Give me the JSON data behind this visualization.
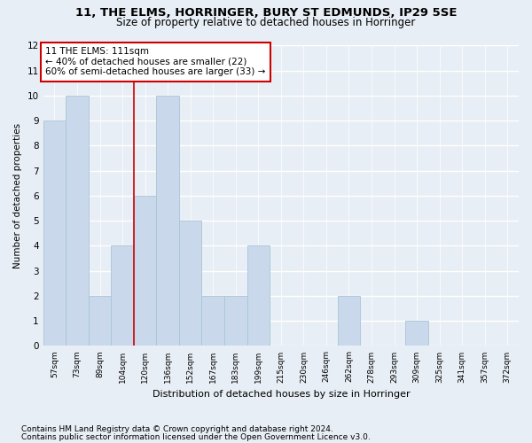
{
  "title1": "11, THE ELMS, HORRINGER, BURY ST EDMUNDS, IP29 5SE",
  "title2": "Size of property relative to detached houses in Horringer",
  "xlabel": "Distribution of detached houses by size in Horringer",
  "ylabel": "Number of detached properties",
  "categories": [
    "57sqm",
    "73sqm",
    "89sqm",
    "104sqm",
    "120sqm",
    "136sqm",
    "152sqm",
    "167sqm",
    "183sqm",
    "199sqm",
    "215sqm",
    "230sqm",
    "246sqm",
    "262sqm",
    "278sqm",
    "293sqm",
    "309sqm",
    "325sqm",
    "341sqm",
    "357sqm",
    "372sqm"
  ],
  "values": [
    9,
    10,
    2,
    4,
    6,
    10,
    5,
    2,
    2,
    4,
    0,
    0,
    0,
    2,
    0,
    0,
    1,
    0,
    0,
    0,
    0
  ],
  "bar_color": "#c9d9eb",
  "bar_edgecolor": "#a8c4d8",
  "bar_linewidth": 0.6,
  "red_line_x": 3.5,
  "annotation_text": "11 THE ELMS: 111sqm\n← 40% of detached houses are smaller (22)\n60% of semi-detached houses are larger (33) →",
  "annotation_box_color": "#ffffff",
  "annotation_box_edgecolor": "#cc0000",
  "ylim": [
    0,
    12
  ],
  "yticks": [
    0,
    1,
    2,
    3,
    4,
    5,
    6,
    7,
    8,
    9,
    10,
    11,
    12
  ],
  "bg_color": "#e8eef5",
  "grid_color": "#ffffff",
  "footer1": "Contains HM Land Registry data © Crown copyright and database right 2024.",
  "footer2": "Contains public sector information licensed under the Open Government Licence v3.0.",
  "title1_fontsize": 9.5,
  "title2_fontsize": 8.5,
  "xlabel_fontsize": 8,
  "ylabel_fontsize": 7.5,
  "tick_fontsize": 6.5,
  "ytick_fontsize": 7.5,
  "annotation_fontsize": 7.5,
  "footer_fontsize": 6.5
}
